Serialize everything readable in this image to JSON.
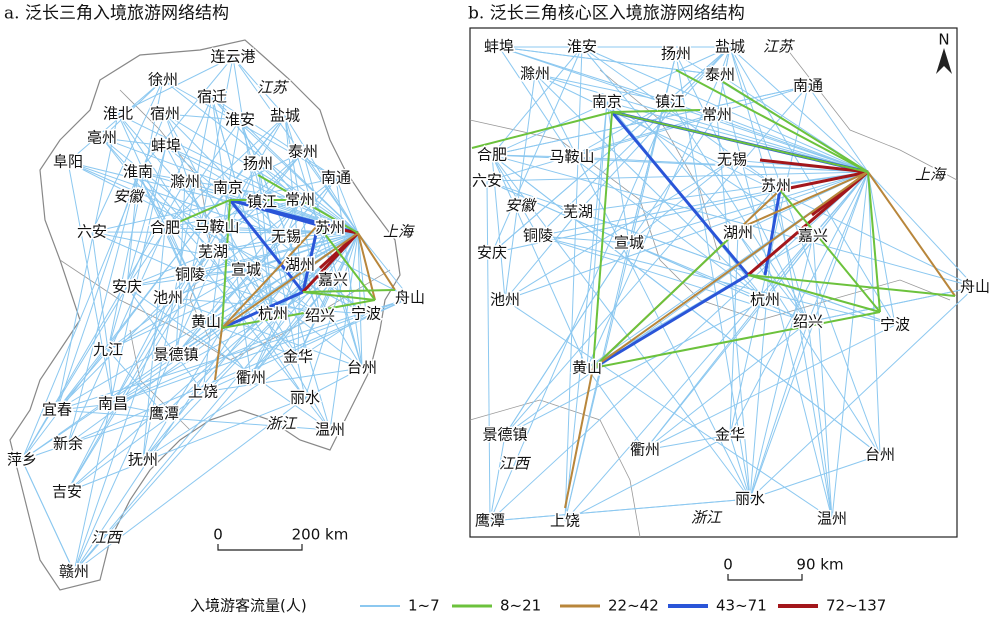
{
  "panels": [
    {
      "title": "a. 泛长三角入境旅游网络结构",
      "cities": [
        "连云港",
        "徐州",
        "宿迁",
        "淮北",
        "宿州",
        "盐城",
        "淮安",
        "亳州",
        "蚌埠",
        "泰州",
        "阜阳",
        "淮南",
        "滁州",
        "扬州",
        "南通",
        "南京",
        "镇江",
        "常州",
        "六安",
        "合肥",
        "马鞍山",
        "苏州",
        "无锡",
        "芜湖",
        "铜陵",
        "宣城",
        "湖州",
        "嘉兴",
        "舟山",
        "安庆",
        "池州",
        "杭州",
        "绍兴",
        "宁波",
        "黄山",
        "九江",
        "景德镇",
        "金华",
        "台州",
        "衢州",
        "上饶",
        "南昌",
        "鹰潭",
        "丽水",
        "宜春",
        "温州",
        "新余",
        "萍乡",
        "抚州",
        "吉安",
        "赣州"
      ],
      "provinces": [
        "江苏",
        "安徽",
        "上海",
        "浙江",
        "江西"
      ],
      "scale": [
        "0",
        "200 km"
      ]
    },
    {
      "title": "b. 泛长三角核心区入境旅游网络结构",
      "cities": [
        "蚌埠",
        "淮安",
        "扬州",
        "盐城",
        "滁州",
        "泰州",
        "南通",
        "南京",
        "镇江",
        "常州",
        "合肥",
        "马鞍山",
        "无锡",
        "六安",
        "苏州",
        "芜湖",
        "铜陵",
        "宣城",
        "湖州",
        "嘉兴",
        "安庆",
        "池州",
        "杭州",
        "舟山",
        "绍兴",
        "宁波",
        "黄山",
        "景德镇",
        "衢州",
        "金华",
        "台州",
        "丽水",
        "上饶",
        "温州",
        "鹰潭"
      ],
      "provinces": [
        "江苏",
        "上海",
        "安徽",
        "江西",
        "浙江"
      ],
      "scale": [
        "0",
        "90 km"
      ],
      "north": "N"
    }
  ],
  "legend": {
    "title": "入境游客流量(人)",
    "items": [
      {
        "label": "1~7",
        "color": "#8cc8f0"
      },
      {
        "label": "8~21",
        "color": "#6cc23c"
      },
      {
        "label": "22~42",
        "color": "#b8863b"
      },
      {
        "label": "43~71",
        "color": "#2a55d8"
      },
      {
        "label": "72~137",
        "color": "#a3161b"
      }
    ]
  }
}
